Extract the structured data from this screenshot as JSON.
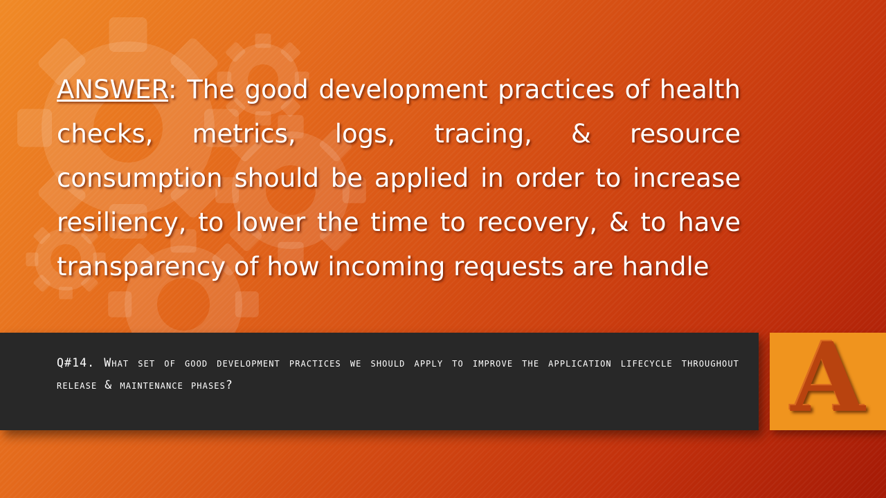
{
  "slide": {
    "background_colors": [
      "#f08a26",
      "#d34a12",
      "#a51a06"
    ],
    "decoration_icon": "gears-icon"
  },
  "answer": {
    "label": "ANSWER",
    "separator": ":",
    "text": "The good development practices of health checks, metrics, logs, tracing, & resource consumption should be applied in order to increase resiliency, to lower the time to recovery, & to have transparency of how incoming requests are handle"
  },
  "question": {
    "text": "Q#14. What set of good development practices we should apply to improve the application lifecycle throughout release & maintenance phases?",
    "bar_color": "#282828"
  },
  "badge": {
    "letter": "A",
    "background": "#f0941e",
    "letter_color": "#b8430f"
  }
}
